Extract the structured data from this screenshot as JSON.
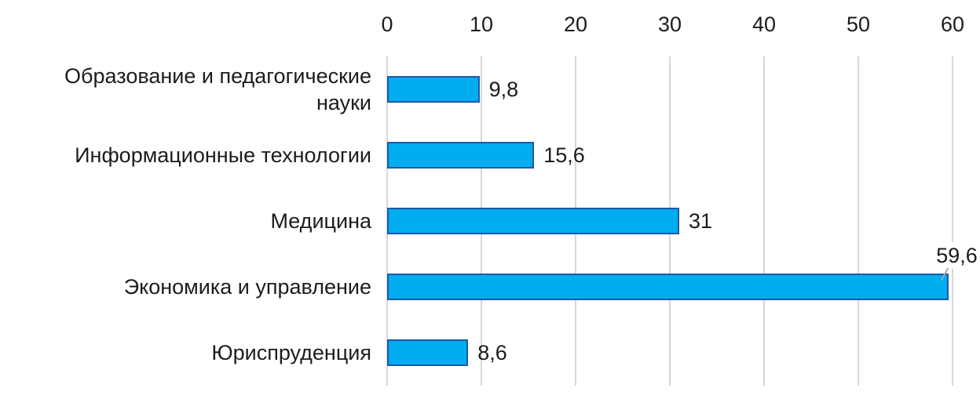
{
  "chart_data": {
    "type": "bar",
    "orientation": "horizontal",
    "title": "",
    "xlabel": "",
    "ylabel": "",
    "categories": [
      "Образование и педагогические науки",
      "Информационные технологии",
      "Медицина",
      "Экономика и управление",
      "Юриспруденция"
    ],
    "values": [
      9.8,
      15.6,
      31,
      59.6,
      8.6
    ],
    "value_labels": [
      "9,8",
      "15,6",
      "31",
      "59,6",
      "8,6"
    ],
    "label_positions": [
      "right",
      "right",
      "right",
      "above",
      "right"
    ],
    "x_ticks": [
      0,
      10,
      20,
      30,
      40,
      50,
      60
    ],
    "x_tick_labels": [
      "0",
      "10",
      "20",
      "30",
      "40",
      "50",
      "60"
    ],
    "xlim": [
      0,
      60
    ],
    "axis_position": "top",
    "grid": true,
    "legend": false
  },
  "colors": {
    "bar_fill": "#00AEEF",
    "bar_border": "#2058A8",
    "gridline": "#D7D7D7",
    "text": "#1c1c1c",
    "leader": "#A6A6A6",
    "background": "#ffffff"
  }
}
